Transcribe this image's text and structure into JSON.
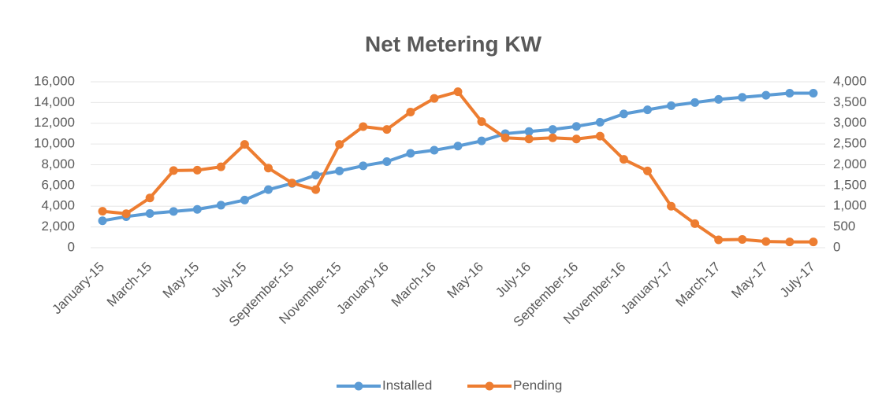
{
  "chart_data": {
    "type": "line",
    "title": "Net Metering KW",
    "categories": [
      "January-15",
      null,
      "March-15",
      null,
      "May-15",
      null,
      "July-15",
      null,
      "September-15",
      null,
      "November-15",
      null,
      "January-16",
      null,
      "March-16",
      null,
      "May-16",
      null,
      "July-16",
      null,
      "September-16",
      null,
      "November-16",
      null,
      "January-17",
      null,
      "March-17",
      null,
      "May-17",
      null,
      "July-17"
    ],
    "series": [
      {
        "name": "Installed",
        "color": "#5b9bd5",
        "axis": "y",
        "values": [
          2600,
          3000,
          3300,
          3500,
          3700,
          4100,
          4600,
          5600,
          6200,
          7000,
          7400,
          7900,
          8300,
          9100,
          9400,
          9800,
          10300,
          11000,
          11200,
          11400,
          11700,
          12100,
          12900,
          13300,
          13700,
          14000,
          14300,
          14500,
          14700,
          14900,
          14900
        ]
      },
      {
        "name": "Pending",
        "color": "#ed7d31",
        "axis": "y2",
        "values": [
          880,
          820,
          1200,
          1860,
          1870,
          1950,
          2490,
          1920,
          1560,
          1400,
          2490,
          2920,
          2850,
          3270,
          3600,
          3760,
          3040,
          2650,
          2620,
          2650,
          2620,
          2690,
          2130,
          1850,
          1000,
          580,
          190,
          200,
          150,
          140,
          140
        ]
      }
    ],
    "ylim": [
      0,
      16000
    ],
    "yticks": [
      0,
      {
        "value": 2000,
        "label": "2,000"
      },
      {
        "value": 4000,
        "label": "4,000"
      },
      {
        "value": 6000,
        "label": "6,000"
      },
      {
        "value": 8000,
        "label": "8,000"
      },
      {
        "value": 10000,
        "label": "10,000"
      },
      {
        "value": 12000,
        "label": "12,000"
      },
      {
        "value": 14000,
        "label": "14,000"
      },
      {
        "value": 16000,
        "label": "16,000"
      }
    ],
    "y2lim": [
      0,
      4000
    ],
    "y2ticks": [
      0,
      500,
      {
        "value": 1000,
        "label": "1,000"
      },
      {
        "value": 1500,
        "label": "1,500"
      },
      {
        "value": 2000,
        "label": "2,000"
      },
      {
        "value": 2500,
        "label": "2,500"
      },
      {
        "value": 3000,
        "label": "3,000"
      },
      {
        "value": 3500,
        "label": "3,500"
      },
      {
        "value": 4000,
        "label": "4,000"
      }
    ],
    "grid": true,
    "legend": "bottom"
  }
}
